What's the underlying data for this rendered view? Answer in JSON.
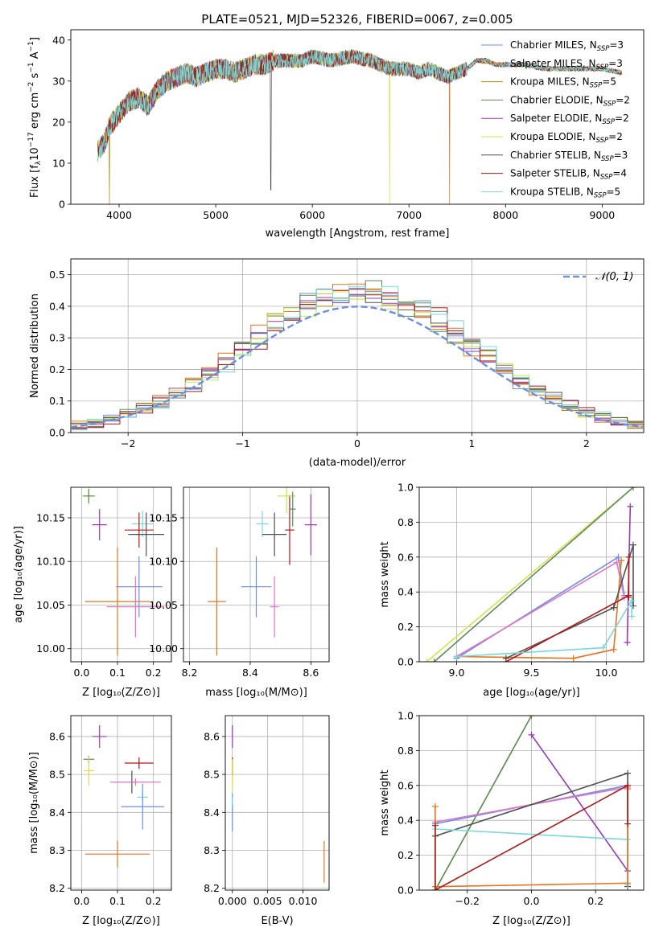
{
  "figure": {
    "title": "PLATE=0521, MJD=52326, FIBERID=0067, z=0.005",
    "colors": [
      "#6b8fe0",
      "#e8731e",
      "#b68a10",
      "#5e8a5e",
      "#9a36b8",
      "#d4e24a",
      "#505050",
      "#b01818",
      "#7ad8d8",
      "#e474c4"
    ]
  },
  "chart_data": [
    {
      "type": "line",
      "id": "spectrum",
      "xlabel_text": "wavelength [Angstrom, rest frame]",
      "ylabel_text": "Flux [f",
      "xlim": [
        3500,
        9430
      ],
      "ylim": [
        0,
        42.5
      ],
      "xticks": [
        4000,
        5000,
        6000,
        7000,
        8000,
        9000
      ],
      "yticks": [
        0,
        10,
        20,
        30,
        40
      ],
      "x_range": [
        3780,
        9200
      ],
      "continuum": {
        "x": [
          3780,
          3850,
          3900,
          4000,
          4100,
          4200,
          4300,
          4400,
          4500,
          4600,
          4700,
          4800,
          4900,
          5000,
          5100,
          5200,
          5300,
          5400,
          5500,
          5600,
          5700,
          5800,
          5900,
          6000,
          6200,
          6400,
          6600,
          6800,
          7000,
          7100,
          7200,
          7300,
          7400,
          7500,
          7600,
          7700,
          7800,
          7900,
          8000,
          8200,
          8400,
          8600,
          8800,
          9000,
          9200
        ],
        "y": [
          13,
          15,
          19,
          22,
          25,
          26,
          24,
          28,
          30,
          31,
          32,
          31,
          32,
          33,
          33,
          32,
          33,
          34,
          34,
          35,
          35,
          35,
          35,
          36,
          35,
          36,
          35,
          33,
          33,
          32,
          33,
          32,
          31,
          32,
          33,
          35,
          35,
          34,
          34,
          34,
          33,
          33,
          33,
          33,
          32
        ]
      },
      "legend": [
        {
          "label": "Chabrier MILES, N",
          "sub": "SSP",
          "value": "=3"
        },
        {
          "label": "Salpeter MILES, N",
          "sub": "SSP",
          "value": "=3"
        },
        {
          "label": "Kroupa MILES, N",
          "sub": "SSP",
          "value": "=5"
        },
        {
          "label": "Chabrier ELODIE, N",
          "sub": "SSP",
          "value": "=2"
        },
        {
          "label": "Salpeter ELODIE, N",
          "sub": "SSP",
          "value": "=2"
        },
        {
          "label": "Kroupa ELODIE, N",
          "sub": "SSP",
          "value": "=2"
        },
        {
          "label": "Chabrier STELIB, N",
          "sub": "SSP",
          "value": "=3"
        },
        {
          "label": "Salpeter STELIB, N",
          "sub": "SSP",
          "value": "=4"
        },
        {
          "label": "Kroupa STELIB, N",
          "sub": "SSP",
          "value": "=5"
        }
      ],
      "dips": [
        {
          "x": 3900,
          "series": 2,
          "y": 0
        },
        {
          "x": 5570,
          "series": 6,
          "y": 3.5
        },
        {
          "x": 6800,
          "series": 5,
          "y": 0
        },
        {
          "x": 7420,
          "series": 1,
          "y": 0
        }
      ]
    },
    {
      "type": "bar",
      "id": "residual-histogram",
      "xlabel": "(data-model)/error",
      "ylabel": "Normed distribution",
      "xlim": [
        -2.5,
        2.5
      ],
      "ylim": [
        0,
        0.55
      ],
      "xticks": [
        -2,
        -1,
        0,
        1,
        2
      ],
      "xtick_labels": [
        "−2",
        "−1",
        "0",
        "1",
        "2"
      ],
      "yticks": [
        0.0,
        0.1,
        0.2,
        0.3,
        0.4,
        0.5
      ],
      "ytick_labels": [
        "0.0",
        "0.1",
        "0.2",
        "0.3",
        "0.4",
        "0.5"
      ],
      "bins": [
        -2.5,
        2.5,
        35
      ],
      "reference_curve": {
        "name": "𝒩(0, 1)",
        "mean": 0,
        "sd": 1,
        "color": "#6b8fe0"
      }
    },
    {
      "type": "scatter",
      "id": "age-vs-Z",
      "xlabel": "Z [log₁₀(Z/Z⊙)]",
      "ylabel": "age  [log₁₀(age/yr)]",
      "xlim": [
        -0.03,
        0.25
      ],
      "ylim": [
        9.985,
        10.185
      ],
      "xticks": [
        0.0,
        0.1,
        0.2
      ],
      "xtick_labels": [
        "0.0",
        "0.1",
        "0.2"
      ],
      "yticks": [
        10.0,
        10.05,
        10.1,
        10.15
      ],
      "ytick_labels": [
        "10.00",
        "10.05",
        "10.10",
        "10.15"
      ],
      "points": [
        {
          "color": "#6b8fe0",
          "x": 0.16,
          "y": 10.071,
          "xerr": 0.065,
          "yerr": 0.035
        },
        {
          "color": "#e8731e",
          "x": 0.1,
          "y": 10.054,
          "xerr": 0.09,
          "yerr": 0.062
        },
        {
          "color": "#e474c4",
          "x": 0.15,
          "y": 10.048,
          "xerr": 0.08,
          "yerr": 0.035
        },
        {
          "color": "#9a36b8",
          "x": 0.05,
          "y": 10.142,
          "xerr": 0.02,
          "yerr": 0.018
        },
        {
          "color": "#d4e24a",
          "x": 0.02,
          "y": 10.175,
          "xerr": 0.02,
          "yerr": 0.01
        },
        {
          "color": "#5e8a5e",
          "x": 0.02,
          "y": 10.175,
          "xerr": 0.015,
          "yerr": 0.008
        },
        {
          "color": "#7ad8d8",
          "x": 0.17,
          "y": 10.143,
          "xerr": 0.03,
          "yerr": 0.015
        },
        {
          "color": "#505050",
          "x": 0.18,
          "y": 10.131,
          "xerr": 0.05,
          "yerr": 0.025
        },
        {
          "color": "#b01818",
          "x": 0.16,
          "y": 10.136,
          "xerr": 0.04,
          "yerr": 0.02
        }
      ]
    },
    {
      "type": "scatter",
      "id": "age-vs-mass",
      "xlabel": "mass [log₁₀(M/M⊙)]",
      "xlim": [
        8.18,
        8.66
      ],
      "ylim": [
        9.985,
        10.185
      ],
      "xticks": [
        8.2,
        8.4,
        8.6
      ],
      "xtick_labels": [
        "8.2",
        "8.4",
        "8.6"
      ],
      "yticks": [
        10.0,
        10.05,
        10.1,
        10.15
      ],
      "ytick_labels": [
        "10.00",
        "10.05",
        "10.10",
        "10.15"
      ],
      "points": [
        {
          "color": "#e8731e",
          "x": 8.29,
          "y": 10.054,
          "xerr": 0.03,
          "yerr": 0.062
        },
        {
          "color": "#6b8fe0",
          "x": 8.42,
          "y": 10.071,
          "xerr": 0.05,
          "yerr": 0.035
        },
        {
          "color": "#e474c4",
          "x": 8.48,
          "y": 10.048,
          "xerr": 0.015,
          "yerr": 0.035
        },
        {
          "color": "#7ad8d8",
          "x": 8.44,
          "y": 10.143,
          "xerr": 0.02,
          "yerr": 0.015
        },
        {
          "color": "#505050",
          "x": 8.48,
          "y": 10.131,
          "xerr": 0.04,
          "yerr": 0.025
        },
        {
          "color": "#b01818",
          "x": 8.53,
          "y": 10.136,
          "xerr": 0.015,
          "yerr": 0.04
        },
        {
          "color": "#d4e24a",
          "x": 8.52,
          "y": 10.175,
          "xerr": 0.03,
          "yerr": 0.02
        },
        {
          "color": "#5e8a5e",
          "x": 8.54,
          "y": 10.16,
          "xerr": 0.01,
          "yerr": 0.02
        },
        {
          "color": "#9a36b8",
          "x": 8.6,
          "y": 10.142,
          "xerr": 0.02,
          "yerr": 0.035
        }
      ]
    },
    {
      "type": "line",
      "id": "mass-weight-vs-age",
      "xlabel": "age  [log₁₀(age/yr)]",
      "ylabel": "mass weight",
      "xlim": [
        8.75,
        10.25
      ],
      "ylim": [
        0,
        1.0
      ],
      "xticks": [
        9.0,
        9.5,
        10.0
      ],
      "xtick_labels": [
        "9.0",
        "9.5",
        "10.0"
      ],
      "yticks": [
        0,
        0.2,
        0.4,
        0.6,
        0.8,
        1.0
      ],
      "ytick_labels": [
        "0.0",
        "0.2",
        "0.4",
        "0.6",
        "0.8",
        "1.0"
      ],
      "series": [
        {
          "color": "#d4e24a",
          "x": [
            8.8,
            10.18
          ],
          "y": [
            0.0,
            1.0
          ]
        },
        {
          "color": "#5e8a5e",
          "x": [
            8.85,
            10.18
          ],
          "y": [
            0.0,
            1.0
          ]
        },
        {
          "color": "#6b8fe0",
          "x": [
            9.0,
            10.08,
            10.12
          ],
          "y": [
            0.02,
            0.6,
            0.38
          ]
        },
        {
          "color": "#e474c4",
          "x": [
            9.0,
            10.07,
            10.12
          ],
          "y": [
            0.03,
            0.57,
            0.37
          ]
        },
        {
          "color": "#e8731e",
          "x": [
            9.0,
            9.78,
            10.05,
            10.1
          ],
          "y": [
            0.03,
            0.02,
            0.07,
            0.58
          ]
        },
        {
          "color": "#9a36b8",
          "x": [
            10.16,
            10.14
          ],
          "y": [
            0.89,
            0.11
          ]
        },
        {
          "color": "#505050",
          "x": [
            9.33,
            10.05,
            10.18,
            10.18
          ],
          "y": [
            0.02,
            0.31,
            0.67,
            0.32
          ]
        },
        {
          "color": "#b01818",
          "x": [
            9.33,
            10.15,
            10.15,
            10.15
          ],
          "y": [
            0.0,
            0.38,
            0.6,
            0.37
          ]
        },
        {
          "color": "#7ad8d8",
          "x": [
            9.0,
            9.98,
            10.17,
            10.17
          ],
          "y": [
            0.03,
            0.08,
            0.35,
            0.26
          ]
        }
      ]
    },
    {
      "type": "scatter",
      "id": "mass-vs-Z",
      "xlabel": "Z [log₁₀(Z/Z⊙)]",
      "ylabel": "mass  [log₁₀(M/M⊙)]",
      "xlim": [
        -0.03,
        0.25
      ],
      "ylim": [
        8.195,
        8.655
      ],
      "xticks": [
        0.0,
        0.1,
        0.2
      ],
      "xtick_labels": [
        "0.0",
        "0.1",
        "0.2"
      ],
      "yticks": [
        8.2,
        8.3,
        8.4,
        8.5,
        8.6
      ],
      "ytick_labels": [
        "8.2",
        "8.3",
        "8.4",
        "8.5",
        "8.6"
      ],
      "points": [
        {
          "color": "#9a36b8",
          "x": 0.05,
          "y": 8.6,
          "xerr": 0.02,
          "yerr": 0.03
        },
        {
          "color": "#5e8a5e",
          "x": 0.02,
          "y": 8.54,
          "xerr": 0.015,
          "yerr": 0.01
        },
        {
          "color": "#d4e24a",
          "x": 0.02,
          "y": 8.51,
          "xerr": 0.015,
          "yerr": 0.04
        },
        {
          "color": "#b01818",
          "x": 0.16,
          "y": 8.53,
          "xerr": 0.04,
          "yerr": 0.015
        },
        {
          "color": "#505050",
          "x": 0.14,
          "y": 8.48,
          "xerr": 0.05,
          "yerr": 0.03
        },
        {
          "color": "#e474c4",
          "x": 0.15,
          "y": 8.48,
          "xerr": 0.07,
          "yerr": 0.01
        },
        {
          "color": "#7ad8d8",
          "x": 0.17,
          "y": 8.44,
          "xerr": 0.015,
          "yerr": 0.01
        },
        {
          "color": "#6b8fe0",
          "x": 0.17,
          "y": 8.415,
          "xerr": 0.06,
          "yerr": 0.06
        },
        {
          "color": "#e8731e",
          "x": 0.1,
          "y": 8.29,
          "xerr": 0.09,
          "yerr": 0.035
        }
      ]
    },
    {
      "type": "scatter",
      "id": "mass-vs-EBV",
      "xlabel": "E(B-V)",
      "xlim": [
        -0.001,
        0.0137
      ],
      "ylim": [
        8.195,
        8.655
      ],
      "xticks": [
        0.0,
        0.005,
        0.01
      ],
      "xtick_labels": [
        "0.000",
        "0.005",
        "0.010"
      ],
      "yticks": [
        8.2,
        8.3,
        8.4,
        8.5,
        8.6
      ],
      "ytick_labels": [
        "8.2",
        "8.3",
        "8.4",
        "8.5",
        "8.6"
      ],
      "points": [
        {
          "color": "#9a36b8",
          "x": 0.0,
          "y": 8.6,
          "xerr": 0,
          "yerr": 0.03
        },
        {
          "color": "#b01818",
          "x": 0.0,
          "y": 8.52,
          "xerr": 0,
          "yerr": 0.025
        },
        {
          "color": "#d4e24a",
          "x": 0.0,
          "y": 8.5,
          "xerr": 0,
          "yerr": 0.04
        },
        {
          "color": "#6b8fe0",
          "x": 0.0,
          "y": 8.4,
          "xerr": 0,
          "yerr": 0.05
        },
        {
          "color": "#7ad8d8",
          "x": 0.0,
          "y": 8.43,
          "xerr": 0,
          "yerr": 0.01
        },
        {
          "color": "#e8731e",
          "x": 0.013,
          "y": 8.27,
          "xerr": 0,
          "yerr": 0.055
        }
      ]
    },
    {
      "type": "line",
      "id": "mass-weight-vs-Z",
      "xlabel": "Z [log₁₀(Z/Z⊙)]",
      "ylabel": "mass weight",
      "xlim": [
        -0.35,
        0.35
      ],
      "ylim": [
        0,
        1.0
      ],
      "xticks": [
        -0.2,
        0.0,
        0.2
      ],
      "xtick_labels": [
        "−0.2",
        "0.0",
        "0.2"
      ],
      "yticks": [
        0,
        0.2,
        0.4,
        0.6,
        0.8,
        1.0
      ],
      "ytick_labels": [
        "0.0",
        "0.2",
        "0.4",
        "0.6",
        "0.8",
        "1.0"
      ],
      "series": [
        {
          "color": "#d4e24a",
          "x": [
            -0.3,
            0.0
          ],
          "y": [
            0.0,
            1.0
          ]
        },
        {
          "color": "#5e8a5e",
          "x": [
            -0.3,
            0.0
          ],
          "y": [
            0.0,
            1.0
          ]
        },
        {
          "color": "#9a36b8",
          "x": [
            0.0,
            0.3
          ],
          "y": [
            0.89,
            0.11
          ]
        },
        {
          "color": "#6b8fe0",
          "x": [
            -0.3,
            0.3
          ],
          "y": [
            0.38,
            0.6
          ]
        },
        {
          "color": "#e474c4",
          "x": [
            -0.3,
            0.3
          ],
          "y": [
            0.39,
            0.59
          ]
        },
        {
          "color": "#505050",
          "x": [
            -0.3,
            0.3,
            0.3
          ],
          "y": [
            0.31,
            0.67,
            0.02
          ]
        },
        {
          "color": "#7ad8d8",
          "x": [
            -0.3,
            0.3,
            0.3
          ],
          "y": [
            0.35,
            0.29,
            0.03
          ]
        },
        {
          "color": "#e8731e",
          "x": [
            -0.3,
            -0.3,
            0.3,
            0.3
          ],
          "y": [
            0.48,
            0.02,
            0.04,
            0.58
          ]
        },
        {
          "color": "#b01818",
          "x": [
            -0.3,
            -0.3,
            0.3,
            0.3
          ],
          "y": [
            0.37,
            0.0,
            0.6,
            0.38
          ]
        }
      ]
    }
  ]
}
